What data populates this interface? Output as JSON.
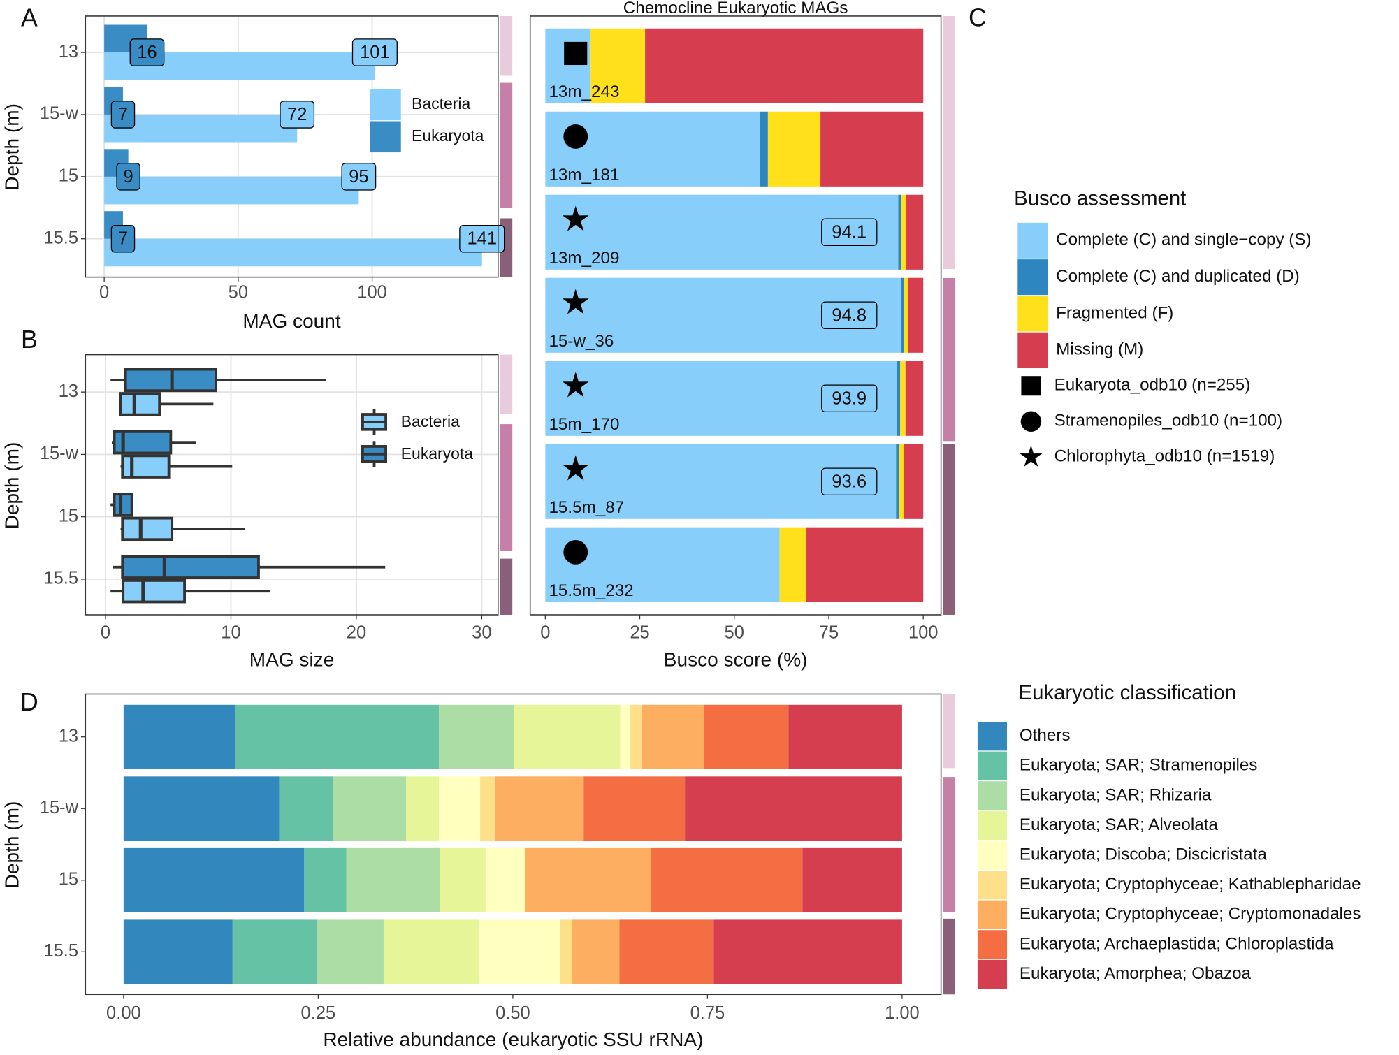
{
  "chart_data": [
    {
      "type": "bar",
      "panel_label": "A",
      "orientation": "horizontal",
      "stacked": false,
      "categories": [
        "13",
        "15-w",
        "15",
        "15.5"
      ],
      "series": [
        {
          "name": "Bacteria",
          "color": "#87CEFA",
          "values": [
            101,
            72,
            95,
            141
          ]
        },
        {
          "name": "Eukaryota",
          "color": "#3A8DC4",
          "values": [
            16,
            7,
            9,
            7
          ]
        }
      ],
      "xlim": [
        -7,
        147
      ],
      "xticks": [
        0,
        50,
        100
      ],
      "xlabel": "MAG count",
      "ylabel": "Depth (m)",
      "grid": true,
      "legend": "inside-right"
    },
    {
      "type": "box",
      "panel_label": "B",
      "orientation": "horizontal",
      "categories": [
        "13",
        "15-w",
        "15",
        "15.5"
      ],
      "series": [
        {
          "name": "Bacteria",
          "color": "#87CEFA",
          "whisker_low": [
            1.2,
            1.2,
            1.2,
            0.4
          ],
          "q1": [
            1.2,
            1.35,
            1.35,
            1.4
          ],
          "median": [
            2.3,
            2.1,
            2.8,
            3.0
          ],
          "q3": [
            4.3,
            5.05,
            5.3,
            6.3
          ],
          "whisker_high": [
            8.6,
            10.1,
            11.1,
            13.1
          ]
        },
        {
          "name": "Eukaryota",
          "color": "#3A8DC4",
          "whisker_low": [
            0.4,
            0.5,
            0.4,
            0.6
          ],
          "q1": [
            1.6,
            0.7,
            0.7,
            1.35
          ],
          "median": [
            5.3,
            1.4,
            1.2,
            4.7
          ],
          "q3": [
            8.8,
            5.2,
            2.1,
            12.2
          ],
          "whisker_high": [
            17.6,
            7.2,
            2.2,
            22.3
          ]
        }
      ],
      "xlim": [
        -1.6,
        31.3
      ],
      "xticks": [
        0,
        10,
        20,
        30
      ],
      "xlabel": "MAG size",
      "ylabel": "Depth (m)",
      "grid": true,
      "legend": "inside-right"
    },
    {
      "type": "bar",
      "panel_label": "C",
      "orientation": "horizontal",
      "stacked": true,
      "title": "Chemocline Eukaryotic MAGs",
      "categories": [
        "13m_243",
        "13m_181",
        "13m_209",
        "15-w_36",
        "15m_170",
        "15.5m_87",
        "15.5m_232"
      ],
      "markers": [
        "square",
        "circle",
        "star",
        "star",
        "star",
        "star",
        "circle"
      ],
      "series": [
        {
          "name": "Complete (C) and single−copy (S)",
          "color": "#87CEFA",
          "values": [
            12.0,
            56.8,
            93.4,
            94.1,
            93.0,
            92.8,
            62.0
          ]
        },
        {
          "name": "Complete (C) and duplicated (D)",
          "color": "#2E86C1",
          "values": [
            0,
            2.1,
            0.7,
            0.7,
            0.9,
            0.8,
            0
          ]
        },
        {
          "name": "Fragmented (F)",
          "color": "#FFE01B",
          "values": [
            14.4,
            13.9,
            1.4,
            1.2,
            1.4,
            1.2,
            6.9
          ]
        },
        {
          "name": "Missing (M)",
          "color": "#D63E4F",
          "values": [
            73.6,
            27.2,
            4.5,
            4.0,
            4.7,
            5.2,
            31.1
          ]
        }
      ],
      "complete_labels": [
        null,
        null,
        94.1,
        94.8,
        93.9,
        93.6,
        null
      ],
      "databases": [
        {
          "name": "Eukaryota_odb10 (n=255)",
          "marker": "square"
        },
        {
          "name": "Stramenopiles_odb10 (n=100)",
          "marker": "circle"
        },
        {
          "name": "Chlorophyta_odb10 (n=1519)",
          "marker": "star"
        }
      ],
      "legend_title": "Busco assessment",
      "xlim": [
        -4,
        104.7
      ],
      "xticks": [
        0,
        25,
        50,
        75,
        100
      ],
      "xlabel": "Busco score (%)",
      "grid": false,
      "legend": "right"
    },
    {
      "type": "bar",
      "panel_label": "D",
      "orientation": "horizontal",
      "stacked": true,
      "categories": [
        "13",
        "15-w",
        "15",
        "15.5"
      ],
      "series": [
        {
          "name": "Others",
          "color": "#3288BD",
          "values": [
            0.143,
            0.2,
            0.232,
            0.14
          ]
        },
        {
          "name": "Eukaryota; SAR; Stramenopiles",
          "color": "#66C2A5",
          "values": [
            0.262,
            0.069,
            0.054,
            0.109
          ]
        },
        {
          "name": "Eukaryota; SAR; Rhizaria",
          "color": "#ABDDA4",
          "values": [
            0.096,
            0.094,
            0.12,
            0.085
          ]
        },
        {
          "name": "Eukaryota; SAR; Alveolata",
          "color": "#E6F598",
          "values": [
            0.137,
            0.042,
            0.059,
            0.122
          ]
        },
        {
          "name": "Eukaryota; Discoba; Discicristata",
          "color": "#FFFFBF",
          "values": [
            0.013,
            0.053,
            0.05,
            0.105
          ]
        },
        {
          "name": "Eukaryota; Cryptophyceae; Kathablepharidae",
          "color": "#FEE08B",
          "values": [
            0.015,
            0.019,
            0.001,
            0.015
          ]
        },
        {
          "name": "Eukaryota; Cryptophyceae; Cryptomonadales",
          "color": "#FDAE61",
          "values": [
            0.08,
            0.114,
            0.161,
            0.061
          ]
        },
        {
          "name": "Eukaryota; Archaeplastida; Chloroplastida",
          "color": "#F46D43",
          "values": [
            0.108,
            0.13,
            0.195,
            0.121
          ]
        },
        {
          "name": "Eukaryota; Amorphea; Obazoa",
          "color": "#D53E4F",
          "values": [
            0.146,
            0.279,
            0.128,
            0.242
          ]
        }
      ],
      "legend_title": "Eukaryotic classification",
      "xlim": [
        -0.049,
        1.05
      ],
      "xticks": [
        {
          "value": 0,
          "label": "0.00"
        },
        {
          "value": 0.25,
          "label": "0.25"
        },
        {
          "value": 0.5,
          "label": "0.50"
        },
        {
          "value": 0.75,
          "label": "0.75"
        },
        {
          "value": 1,
          "label": "1.00"
        }
      ],
      "xlabel": "Relative abundance (eukaryotic SSU rRNA)",
      "ylabel": "Depth (m)",
      "grid": false,
      "legend": "right"
    }
  ]
}
